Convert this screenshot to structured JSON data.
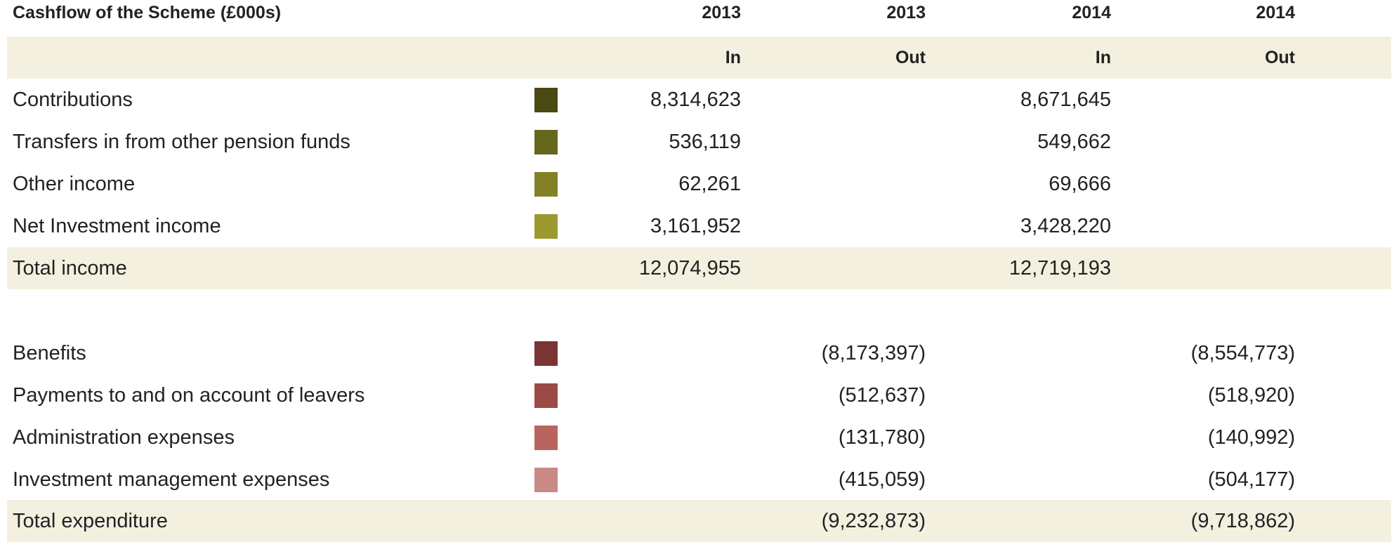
{
  "header": {
    "title": "Cashflow of the Scheme (£000s)",
    "years": [
      "2013",
      "2013",
      "2014",
      "2014"
    ],
    "subheads": [
      "In",
      "Out",
      "In",
      "Out"
    ]
  },
  "income": [
    {
      "label": "Contributions",
      "color": "#4a4a12",
      "in_2013": "8,314,623",
      "in_2014": "8,671,645"
    },
    {
      "label": "Transfers in from other pension funds",
      "color": "#66661c",
      "in_2013": "536,119",
      "in_2014": "549,662"
    },
    {
      "label": "Other income",
      "color": "#838126",
      "in_2013": "62,261",
      "in_2014": "69,666"
    },
    {
      "label": "Net Investment income",
      "color": "#9c992e",
      "in_2013": "3,161,952",
      "in_2014": "3,428,220"
    }
  ],
  "total_income": {
    "label": "Total income",
    "in_2013": "12,074,955",
    "in_2014": "12,719,193"
  },
  "expenditure": [
    {
      "label": "Benefits",
      "color": "#7a3434",
      "out_2013": "(8,173,397)",
      "out_2014": "(8,554,773)"
    },
    {
      "label": "Payments to and on account of leavers",
      "color": "#9c4a46",
      "out_2013": "(512,637)",
      "out_2014": "(518,920)"
    },
    {
      "label": "Administration expenses",
      "color": "#b9645f",
      "out_2013": "(131,780)",
      "out_2014": "(140,992)"
    },
    {
      "label": "Investment management expenses",
      "color": "#c98a86",
      "out_2013": "(415,059)",
      "out_2014": "(504,177)"
    }
  ],
  "total_expenditure": {
    "label": "Total expenditure",
    "out_2013": "(9,232,873)",
    "out_2014": "(9,718,862)"
  }
}
